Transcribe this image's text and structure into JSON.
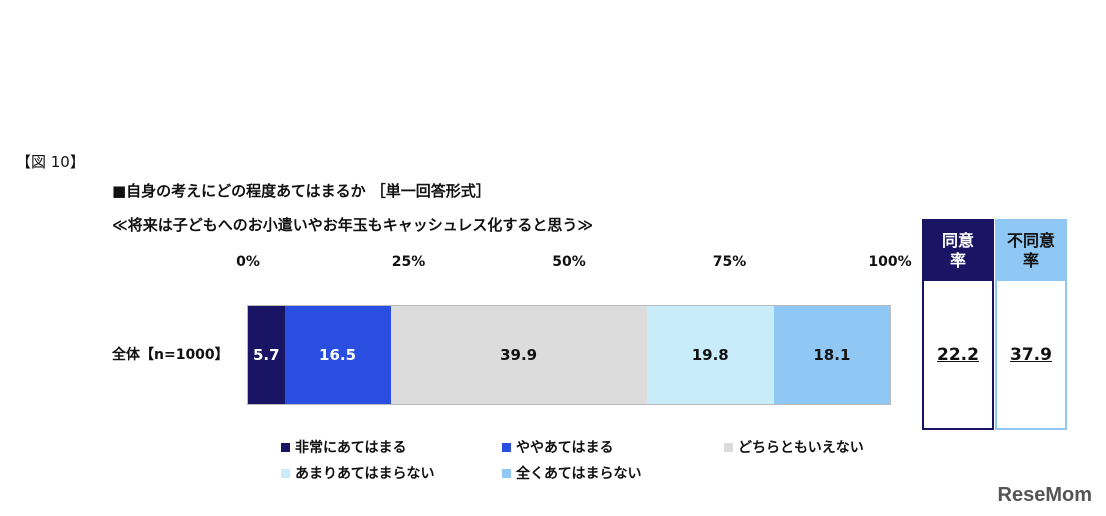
{
  "figure_label": "【図 10】",
  "heading": "■自身の考えにどの程度あてはまるか ［単一回答形式］",
  "question": "≪将来は子どもへのお小遣いやお年玉もキャッシュレス化すると思う≫",
  "chart_data": {
    "type": "bar",
    "orientation": "horizontal",
    "stacked": true,
    "x_ticks": [
      "0%",
      "25%",
      "50%",
      "75%",
      "100%"
    ],
    "xlim": [
      0,
      100
    ],
    "categories": [
      "全体【n=1000】"
    ],
    "series": [
      {
        "name": "非常にあてはまる",
        "values": [
          5.7
        ],
        "label": "5.7",
        "color": "#1a1464",
        "text_color": "#ffffff"
      },
      {
        "name": "ややあてはまる",
        "values": [
          16.5
        ],
        "label": "16.5",
        "color": "#2a4fe0",
        "text_color": "#ffffff"
      },
      {
        "name": "どちらともいえない",
        "values": [
          39.9
        ],
        "label": "39.9",
        "color": "#dcdcdc",
        "text_color": "#111111"
      },
      {
        "name": "あまりあてはまらない",
        "values": [
          19.8
        ],
        "label": "19.8",
        "color": "#c9ecfb",
        "text_color": "#111111"
      },
      {
        "name": "全くあてはまらない",
        "values": [
          18.1
        ],
        "label": "18.1",
        "color": "#8fc8f5",
        "text_color": "#111111"
      }
    ],
    "legend_position": "bottom",
    "summary_boxes": [
      {
        "label": "同意\n率",
        "value": "22.2",
        "header_color": "#1a1464",
        "header_text_color": "#ffffff",
        "border_color": "#1a1464"
      },
      {
        "label": "不同意\n率",
        "value": "37.9",
        "header_color": "#8fc8f5",
        "header_text_color": "#111111",
        "border_color": "#8fc8f5"
      }
    ]
  },
  "watermark": "ReseMom"
}
